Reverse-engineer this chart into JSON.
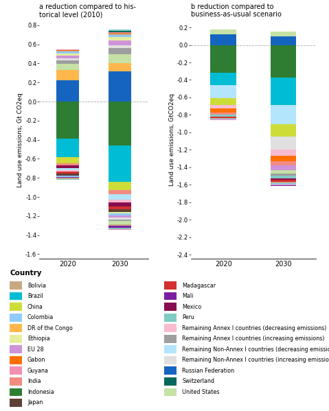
{
  "title_a": "a reduction compared to his-\ntorical level (2010)",
  "title_b": "b reduction compared to\nbusiness-as-usual scenario",
  "ylabel_a": "Land use emissions, Gt CO2eq",
  "ylabel_b": "Land use emissions, GtCO2eq",
  "ylim_a": [
    -1.65,
    0.85
  ],
  "ylim_b": [
    -2.45,
    0.28
  ],
  "yticks_a": [
    0.8,
    0.6,
    0.4,
    0.2,
    0.0,
    -0.2,
    -0.4,
    -0.6,
    -0.8,
    -1.0,
    -1.2,
    -1.4,
    -1.6
  ],
  "yticks_b": [
    0.2,
    0.0,
    -0.2,
    -0.4,
    -0.6,
    -0.8,
    -1.0,
    -1.2,
    -1.4,
    -1.6,
    -1.8,
    -2.0,
    -2.2,
    -2.4
  ],
  "colors": {
    "Bolivia": "#c8a882",
    "Brazil": "#00bcd4",
    "China": "#cddc39",
    "Colombia": "#90caf9",
    "DR of the Congo": "#ffb74d",
    "Ethiopia": "#e6ee9c",
    "EU 28": "#ce93d8",
    "Gabon": "#ff6f00",
    "Guyana": "#f48fb1",
    "India": "#f28b82",
    "Indonesia": "#2e7d32",
    "Japan": "#5d4037",
    "Madagascar": "#d32f2f",
    "Mali": "#7b1fa2",
    "Mexico": "#880e4f",
    "Peru": "#80cbc4",
    "Remaining Annex I countries (decreasing emissions)": "#f8bbd0",
    "Remaining Annex I countries (increasing emissions)": "#9e9e9e",
    "Remaining Non-Annex I countries (decreasing emissions)": "#b3e5fc",
    "Remaining Non-Annex I countries (increasing emissions)": "#e0e0e0",
    "Russian Federation": "#1565c0",
    "Switzerland": "#00695c",
    "United States": "#c5e1a5"
  },
  "chart_a": {
    "2020": {
      "positive": [
        [
          "Russian Federation",
          0.22
        ],
        [
          "DR of the Congo",
          0.11
        ],
        [
          "United States",
          0.065
        ],
        [
          "Remaining Annex I countries (increasing emissions)",
          0.04
        ],
        [
          "Remaining Non-Annex I countries (increasing emissions)",
          0.02
        ],
        [
          "EU 28",
          0.03
        ],
        [
          "Ethiopia",
          0.02
        ],
        [
          "Colombia",
          0.02
        ],
        [
          "Bolivia",
          0.01
        ],
        [
          "Gabon",
          0.005
        ],
        [
          "Guyana",
          0.005
        ],
        [
          "Switzerland",
          0.005
        ]
      ],
      "negative": [
        [
          "Indonesia",
          -0.39
        ],
        [
          "Brazil",
          -0.19
        ],
        [
          "China",
          -0.065
        ],
        [
          "India",
          -0.025
        ],
        [
          "Mexico",
          -0.03
        ],
        [
          "Remaining Non-Annex I countries (decreasing emissions)",
          -0.02
        ],
        [
          "Remaining Annex I countries (decreasing emissions)",
          -0.015
        ],
        [
          "Madagascar",
          -0.02
        ],
        [
          "Japan",
          -0.02
        ],
        [
          "Colombia",
          -0.015
        ],
        [
          "Mali",
          -0.01
        ],
        [
          "Bolivia",
          -0.01
        ],
        [
          "Peru",
          -0.008
        ],
        [
          "Guyana",
          -0.005
        ]
      ]
    },
    "2030": {
      "positive": [
        [
          "Russian Federation",
          0.32
        ],
        [
          "DR of the Congo",
          0.085
        ],
        [
          "United States",
          0.095
        ],
        [
          "Remaining Annex I countries (increasing emissions)",
          0.06
        ],
        [
          "Remaining Non-Annex I countries (increasing emissions)",
          0.03
        ],
        [
          "EU 28",
          0.05
        ],
        [
          "Ethiopia",
          0.04
        ],
        [
          "Colombia",
          0.02
        ],
        [
          "Bolivia",
          0.01
        ],
        [
          "Gabon",
          0.01
        ],
        [
          "Guyana",
          0.01
        ],
        [
          "Switzerland",
          0.01
        ],
        [
          "Mali",
          0.005
        ],
        [
          "Peru",
          0.01
        ]
      ],
      "negative": [
        [
          "Indonesia",
          -0.46
        ],
        [
          "Brazil",
          -0.38
        ],
        [
          "China",
          -0.09
        ],
        [
          "India",
          -0.04
        ],
        [
          "Remaining Non-Annex I countries (decreasing emissions)",
          -0.06
        ],
        [
          "Remaining Annex I countries (decreasing emissions)",
          -0.03
        ],
        [
          "Mexico",
          -0.04
        ],
        [
          "Madagascar",
          -0.03
        ],
        [
          "Japan",
          -0.025
        ],
        [
          "Ethiopia",
          -0.02
        ],
        [
          "Colombia",
          -0.02
        ],
        [
          "EU 28",
          -0.02
        ],
        [
          "Remaining Non-Annex I countries (increasing emissions)",
          -0.02
        ],
        [
          "Remaining Annex I countries (increasing emissions)",
          -0.02
        ],
        [
          "United States",
          -0.03
        ],
        [
          "Bolivia",
          -0.02
        ],
        [
          "Mali",
          -0.015
        ],
        [
          "Peru",
          -0.015
        ],
        [
          "Guyana",
          -0.01
        ]
      ]
    }
  },
  "chart_b": {
    "2020": {
      "positive": [
        [
          "Russian Federation",
          0.12
        ],
        [
          "United States",
          0.055
        ]
      ],
      "negative": [
        [
          "Indonesia",
          -0.32
        ],
        [
          "Brazil",
          -0.14
        ],
        [
          "Remaining Non-Annex I countries (decreasing emissions)",
          -0.15
        ],
        [
          "China",
          -0.075
        ],
        [
          "Remaining Annex I countries (decreasing emissions)",
          -0.045
        ],
        [
          "Gabon",
          -0.04
        ],
        [
          "India",
          -0.03
        ],
        [
          "Peru",
          -0.018
        ],
        [
          "Madagascar",
          -0.015
        ],
        [
          "Bolivia",
          -0.01
        ],
        [
          "Colombia",
          -0.01
        ],
        [
          "Guyana",
          -0.005
        ],
        [
          "Mali",
          -0.005
        ]
      ]
    },
    "2030": {
      "positive": [
        [
          "Russian Federation",
          0.1
        ],
        [
          "United States",
          0.05
        ]
      ],
      "negative": [
        [
          "Indonesia",
          -0.37
        ],
        [
          "Brazil",
          -0.32
        ],
        [
          "Remaining Non-Annex I countries (decreasing emissions)",
          -0.22
        ],
        [
          "China",
          -0.14
        ],
        [
          "Remaining Non-Annex I countries (increasing emissions)",
          -0.15
        ],
        [
          "Remaining Annex I countries (decreasing emissions)",
          -0.07
        ],
        [
          "Gabon",
          -0.06
        ],
        [
          "India",
          -0.05
        ],
        [
          "EU 28",
          -0.05
        ],
        [
          "United States",
          -0.04
        ],
        [
          "Remaining Annex I countries (increasing emissions)",
          -0.03
        ],
        [
          "Peru",
          -0.025
        ],
        [
          "Mexico",
          -0.02
        ],
        [
          "Madagascar",
          -0.02
        ],
        [
          "Bolivia",
          -0.015
        ],
        [
          "Colombia",
          -0.015
        ],
        [
          "Guyana",
          -0.01
        ],
        [
          "Mali",
          -0.01
        ]
      ]
    }
  },
  "legend_order_left": [
    "Bolivia",
    "Brazil",
    "China",
    "Colombia",
    "DR of the Congo",
    "Ethiopia",
    "EU 28",
    "Gabon",
    "Guyana",
    "India",
    "Indonesia",
    "Japan"
  ],
  "legend_order_right": [
    "Madagascar",
    "Mali",
    "Mexico",
    "Peru",
    "Remaining Annex I countries (decreasing emissions)",
    "Remaining Annex I countries (increasing emissions)",
    "Remaining Non-Annex I countries (decreasing emissions)",
    "Remaining Non-Annex I countries (increasing emissions)",
    "Russian Federation",
    "Switzerland",
    "United States"
  ]
}
